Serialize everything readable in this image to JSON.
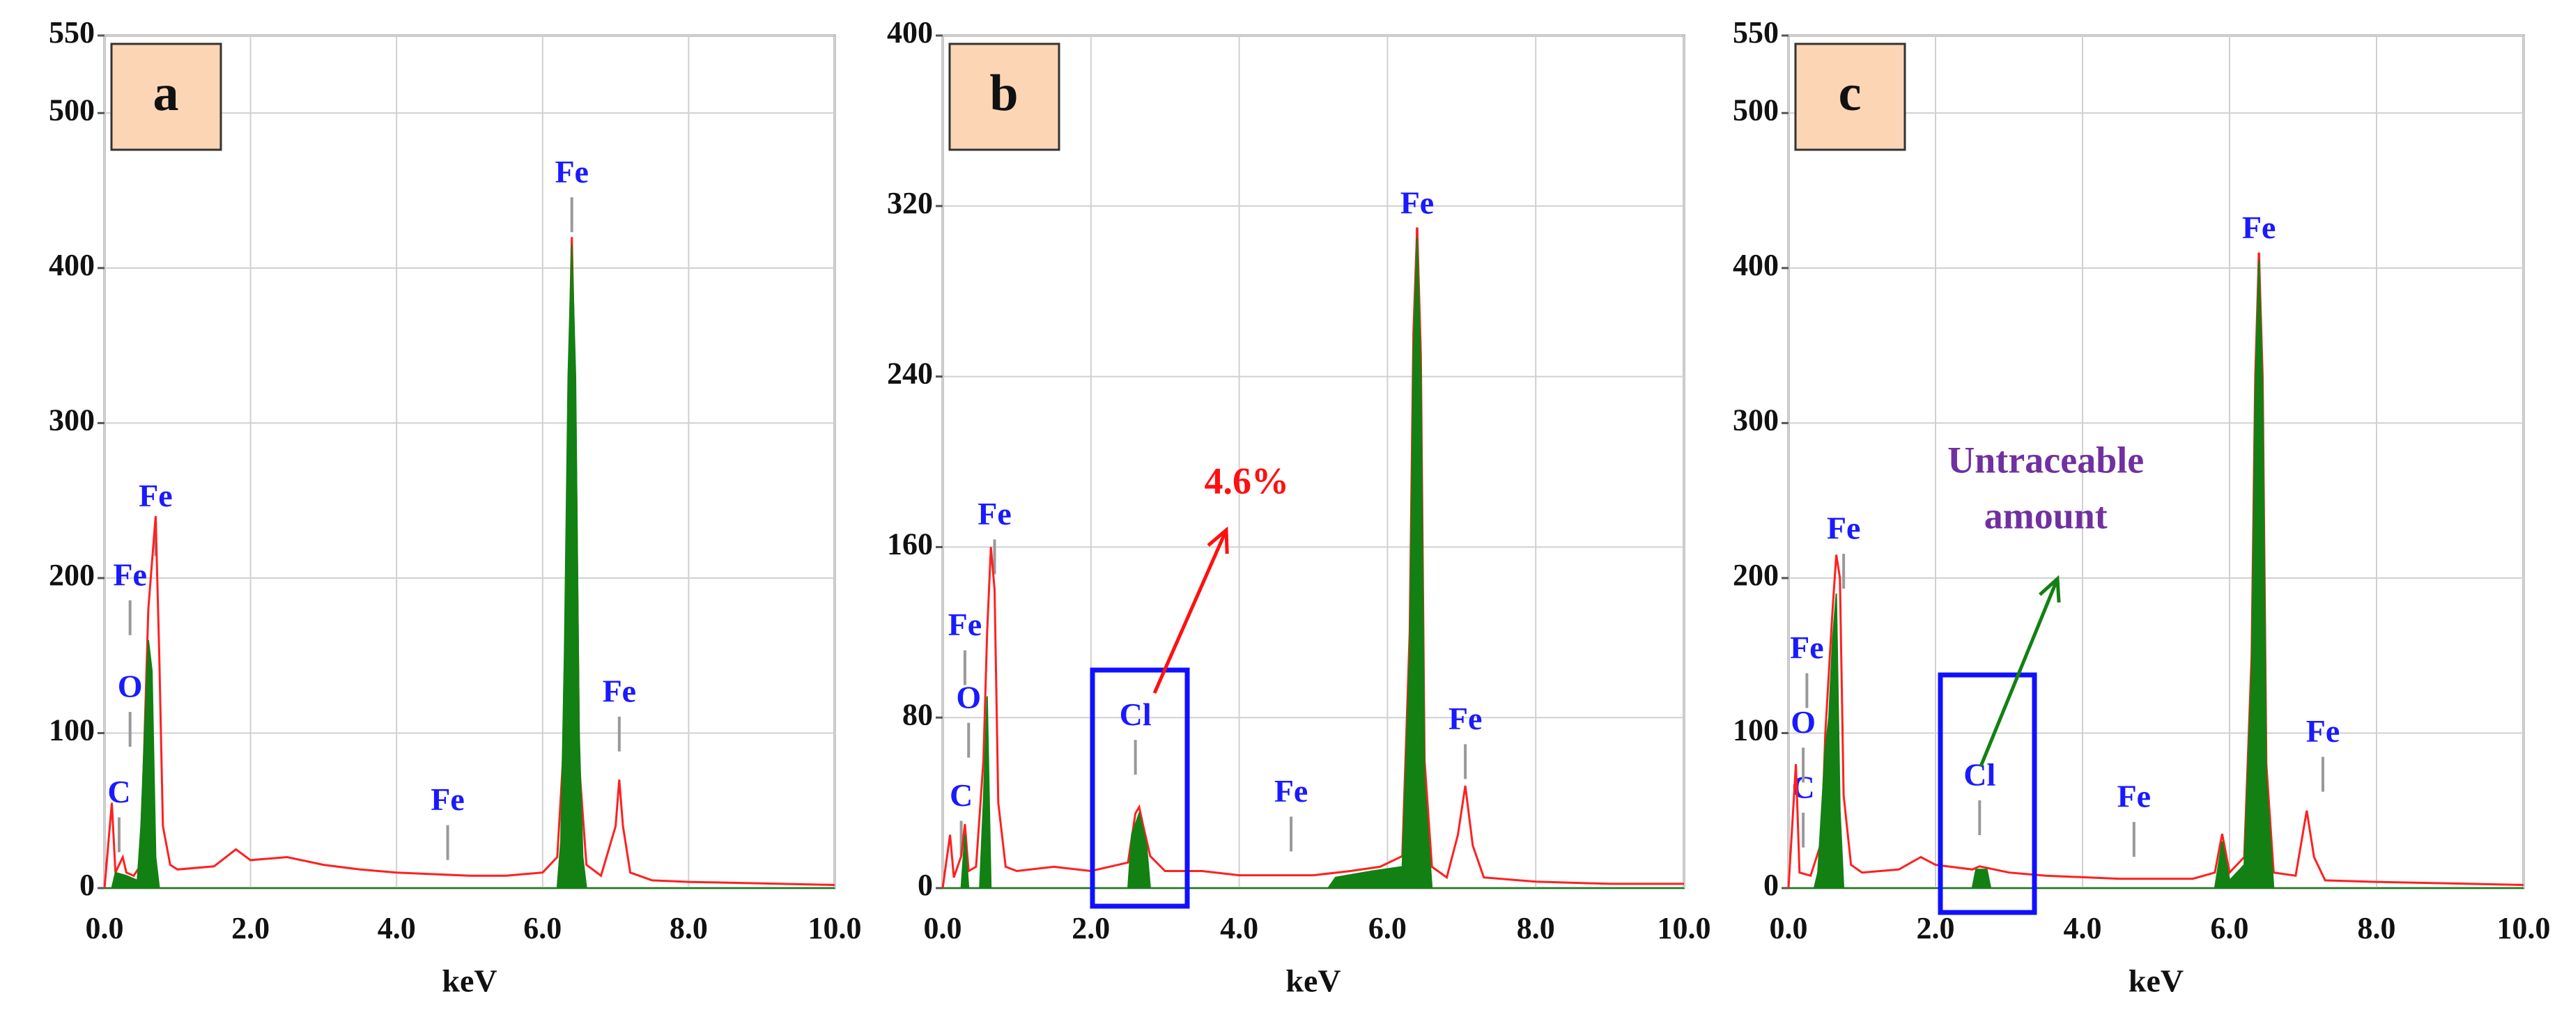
{
  "chart_data": [
    {
      "type": "line",
      "panel_label": "a",
      "xlabel": "keV",
      "xlim": [
        0,
        10
      ],
      "ylim": [
        0,
        550
      ],
      "xticks": [
        {
          "value": 0,
          "label": "0.0"
        },
        {
          "value": 2,
          "label": "2.0"
        },
        {
          "value": 4,
          "label": "4.0"
        },
        {
          "value": 6,
          "label": "6.0"
        },
        {
          "value": 8,
          "label": "8.0"
        },
        {
          "value": 10,
          "label": "10.0"
        }
      ],
      "yticks": [
        0,
        100,
        200,
        300,
        400,
        500,
        550
      ],
      "grid": true,
      "series": [
        {
          "color": "#ff2020",
          "fill": false,
          "x": [
            0,
            0.1,
            0.15,
            0.25,
            0.3,
            0.4,
            0.5,
            0.55,
            0.6,
            0.65,
            0.7,
            0.75,
            0.8,
            0.9,
            1.0,
            1.5,
            1.8,
            2.0,
            2.5,
            3.0,
            3.5,
            4.0,
            4.5,
            5.0,
            5.5,
            6.0,
            6.2,
            6.3,
            6.35,
            6.4,
            6.45,
            6.5,
            6.6,
            6.8,
            7.0,
            7.05,
            7.1,
            7.2,
            7.5,
            8,
            9,
            10
          ],
          "values": [
            0,
            55,
            10,
            20,
            10,
            8,
            15,
            100,
            180,
            210,
            240,
            150,
            40,
            15,
            12,
            14,
            25,
            18,
            20,
            15,
            12,
            10,
            9,
            8,
            8,
            10,
            20,
            100,
            300,
            420,
            300,
            80,
            15,
            8,
            40,
            70,
            40,
            10,
            5,
            4,
            3,
            2
          ]
        },
        {
          "color": "#138013",
          "fill": true,
          "x": [
            0,
            0.1,
            0.15,
            0.3,
            0.45,
            0.5,
            0.55,
            0.6,
            0.65,
            0.7,
            0.75,
            6.2,
            6.25,
            6.3,
            6.35,
            6.4,
            6.45,
            6.5,
            6.55,
            6.6,
            10
          ],
          "values": [
            0,
            0,
            10,
            8,
            5,
            40,
            100,
            160,
            140,
            20,
            0,
            0,
            30,
            150,
            330,
            415,
            330,
            100,
            20,
            0,
            0
          ]
        }
      ],
      "peak_labels": [
        {
          "text": "C",
          "x": 0.2,
          "y": 60
        },
        {
          "text": "O",
          "x": 0.35,
          "y": 128
        },
        {
          "text": "Fe",
          "x": 0.35,
          "y": 200
        },
        {
          "text": "Fe",
          "x": 0.7,
          "y": 251
        },
        {
          "text": "Fe",
          "x": 4.7,
          "y": 55
        },
        {
          "text": "Fe",
          "x": 6.4,
          "y": 460
        },
        {
          "text": "Fe",
          "x": 7.05,
          "y": 125
        }
      ]
    },
    {
      "type": "line",
      "panel_label": "b",
      "xlabel": "keV",
      "xlim": [
        0,
        10
      ],
      "ylim": [
        0,
        400
      ],
      "xticks": [
        {
          "value": 0,
          "label": "0.0"
        },
        {
          "value": 2,
          "label": "2.0"
        },
        {
          "value": 4,
          "label": "4.0"
        },
        {
          "value": 6,
          "label": "6.0"
        },
        {
          "value": 8,
          "label": "8.0"
        },
        {
          "value": 10,
          "label": "10.0"
        }
      ],
      "yticks": [
        0,
        80,
        160,
        240,
        320,
        400
      ],
      "grid": true,
      "series": [
        {
          "color": "#ff2020",
          "fill": false,
          "x": [
            0,
            0.1,
            0.15,
            0.25,
            0.3,
            0.35,
            0.45,
            0.55,
            0.6,
            0.65,
            0.7,
            0.75,
            0.85,
            1.0,
            1.5,
            2.0,
            2.5,
            2.6,
            2.65,
            2.7,
            2.8,
            3.0,
            3.5,
            4,
            4.5,
            5,
            5.5,
            5.9,
            6.2,
            6.3,
            6.35,
            6.4,
            6.45,
            6.5,
            6.6,
            6.8,
            6.95,
            7.05,
            7.15,
            7.3,
            8,
            9,
            10
          ],
          "values": [
            0,
            25,
            5,
            15,
            30,
            8,
            10,
            60,
            120,
            160,
            140,
            40,
            10,
            8,
            10,
            8,
            12,
            35,
            38,
            30,
            15,
            8,
            8,
            6,
            6,
            6,
            8,
            10,
            15,
            120,
            260,
            310,
            250,
            60,
            10,
            5,
            25,
            48,
            20,
            5,
            3,
            2,
            2
          ]
        },
        {
          "color": "#138013",
          "fill": true,
          "x": [
            0,
            0.25,
            0.3,
            0.35,
            0.5,
            0.55,
            0.6,
            0.65,
            2.5,
            2.55,
            2.65,
            2.75,
            2.8,
            5.2,
            5.3,
            5.8,
            6.2,
            6.3,
            6.35,
            6.4,
            6.45,
            6.5,
            6.6,
            10
          ],
          "values": [
            0,
            0,
            25,
            0,
            0,
            40,
            90,
            0,
            0,
            25,
            35,
            20,
            0,
            0,
            5,
            8,
            10,
            110,
            250,
            305,
            240,
            50,
            0,
            0
          ]
        }
      ],
      "peak_labels": [
        {
          "text": "C",
          "x": 0.25,
          "y": 42
        },
        {
          "text": "O",
          "x": 0.35,
          "y": 88
        },
        {
          "text": "Fe",
          "x": 0.3,
          "y": 122
        },
        {
          "text": "Fe",
          "x": 0.7,
          "y": 174
        },
        {
          "text": "Cl",
          "x": 2.6,
          "y": 80
        },
        {
          "text": "Fe",
          "x": 4.7,
          "y": 44
        },
        {
          "text": "Fe",
          "x": 6.4,
          "y": 320
        },
        {
          "text": "Fe",
          "x": 7.05,
          "y": 78
        }
      ],
      "annotations": [
        {
          "lines": [
            "4.6%"
          ],
          "x": 4.1,
          "y": 189,
          "color": "#ff1010"
        }
      ]
    },
    {
      "type": "line",
      "panel_label": "c",
      "xlabel": "keV",
      "xlim": [
        0,
        10
      ],
      "ylim": [
        0,
        550
      ],
      "xticks": [
        {
          "value": 0,
          "label": "0.0"
        },
        {
          "value": 2,
          "label": "2.0"
        },
        {
          "value": 4,
          "label": "4.0"
        },
        {
          "value": 6,
          "label": "6.0"
        },
        {
          "value": 8,
          "label": "8.0"
        },
        {
          "value": 10,
          "label": "10.0"
        }
      ],
      "yticks": [
        0,
        100,
        200,
        300,
        400,
        500,
        550
      ],
      "grid": true,
      "series": [
        {
          "color": "#ff2020",
          "fill": false,
          "x": [
            0,
            0.1,
            0.15,
            0.3,
            0.45,
            0.5,
            0.6,
            0.65,
            0.7,
            0.75,
            0.85,
            1.0,
            1.5,
            1.8,
            2.0,
            2.5,
            2.6,
            3.0,
            3.5,
            4,
            4.5,
            5,
            5.5,
            5.8,
            5.9,
            6.0,
            6.2,
            6.3,
            6.35,
            6.4,
            6.45,
            6.5,
            6.6,
            6.9,
            7.05,
            7.15,
            7.3,
            8,
            9,
            10
          ],
          "values": [
            0,
            80,
            10,
            8,
            30,
            100,
            180,
            215,
            200,
            60,
            15,
            10,
            12,
            20,
            15,
            12,
            14,
            10,
            8,
            7,
            6,
            6,
            6,
            10,
            35,
            10,
            20,
            150,
            330,
            410,
            330,
            80,
            10,
            8,
            50,
            20,
            5,
            4,
            3,
            2
          ]
        },
        {
          "color": "#138013",
          "fill": true,
          "x": [
            0,
            0.35,
            0.4,
            0.5,
            0.55,
            0.6,
            0.65,
            0.7,
            0.75,
            2.5,
            2.55,
            2.7,
            2.75,
            5.8,
            5.9,
            6.0,
            6.2,
            6.3,
            6.35,
            6.4,
            6.45,
            6.5,
            6.6,
            10
          ],
          "values": [
            0,
            0,
            10,
            90,
            110,
            160,
            190,
            50,
            0,
            0,
            12,
            12,
            0,
            0,
            30,
            5,
            15,
            140,
            320,
            405,
            320,
            70,
            0,
            0
          ]
        }
      ],
      "peak_labels": [
        {
          "text": "C",
          "x": 0.2,
          "y": 63
        },
        {
          "text": "O",
          "x": 0.2,
          "y": 105
        },
        {
          "text": "Fe",
          "x": 0.25,
          "y": 153
        },
        {
          "text": "Fe",
          "x": 0.75,
          "y": 230
        },
        {
          "text": "Cl",
          "x": 2.6,
          "y": 71
        },
        {
          "text": "Fe",
          "x": 4.7,
          "y": 57
        },
        {
          "text": "Fe",
          "x": 6.4,
          "y": 424
        },
        {
          "text": "Fe",
          "x": 7.27,
          "y": 99
        }
      ],
      "annotations": [
        {
          "lines": [
            "Untraceable",
            "amount"
          ],
          "x": 3.5,
          "y": 260,
          "color": "#7030a0"
        }
      ]
    }
  ]
}
